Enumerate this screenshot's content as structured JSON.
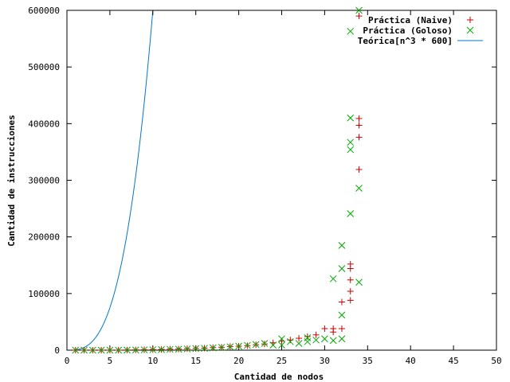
{
  "chart_data": {
    "type": "scatter",
    "xlabel": "Cantidad de nodos",
    "ylabel": "Cantidad de instrucciones",
    "xlim": [
      0,
      50
    ],
    "ylim": [
      0,
      600000
    ],
    "x_ticks": [
      0,
      5,
      10,
      15,
      20,
      25,
      30,
      35,
      40,
      45,
      50
    ],
    "y_ticks": [
      0,
      100000,
      200000,
      300000,
      400000,
      500000,
      600000
    ],
    "x_tick_labels": [
      "0",
      "5",
      "10",
      "15",
      "20",
      "25",
      "30",
      "35",
      "40",
      "45",
      "50"
    ],
    "y_tick_labels": [
      "0",
      "100000",
      "200000",
      "300000",
      "400000",
      "500000",
      "600000"
    ],
    "grid": false,
    "legend_position": "top-right",
    "series": [
      {
        "name": "Práctica (Naive)",
        "marker": "plus",
        "color": "#cc0000",
        "points": [
          [
            1,
            0
          ],
          [
            2,
            0
          ],
          [
            3,
            0
          ],
          [
            4,
            0
          ],
          [
            5,
            0
          ],
          [
            6,
            0
          ],
          [
            7,
            300
          ],
          [
            8,
            500
          ],
          [
            9,
            700
          ],
          [
            10,
            1000
          ],
          [
            11,
            1200
          ],
          [
            12,
            1800
          ],
          [
            13,
            2000
          ],
          [
            14,
            2600
          ],
          [
            15,
            3000
          ],
          [
            16,
            3500
          ],
          [
            17,
            4500
          ],
          [
            18,
            5200
          ],
          [
            19,
            6500
          ],
          [
            20,
            7000
          ],
          [
            21,
            8000
          ],
          [
            22,
            9500
          ],
          [
            23,
            11000
          ],
          [
            24,
            13000
          ],
          [
            25,
            16000
          ],
          [
            26,
            18000
          ],
          [
            27,
            21000
          ],
          [
            28,
            24000
          ],
          [
            29,
            27000
          ],
          [
            30,
            38000
          ],
          [
            31,
            32000
          ],
          [
            31,
            38000
          ],
          [
            32,
            38000
          ],
          [
            32,
            85000
          ],
          [
            33,
            88000
          ],
          [
            33,
            104000
          ],
          [
            33,
            124000
          ],
          [
            33,
            144000
          ],
          [
            33,
            152000
          ],
          [
            34,
            319000
          ],
          [
            34,
            376000
          ],
          [
            34,
            397000
          ],
          [
            34,
            409000
          ],
          [
            34,
            590000
          ]
        ]
      },
      {
        "name": "Práctica (Goloso)",
        "marker": "cross",
        "color": "#00aa00",
        "points": [
          [
            1,
            0
          ],
          [
            2,
            0
          ],
          [
            3,
            0
          ],
          [
            4,
            0
          ],
          [
            5,
            0
          ],
          [
            6,
            0
          ],
          [
            7,
            200
          ],
          [
            8,
            400
          ],
          [
            9,
            600
          ],
          [
            10,
            800
          ],
          [
            11,
            1000
          ],
          [
            12,
            1500
          ],
          [
            13,
            1800
          ],
          [
            14,
            2200
          ],
          [
            15,
            2800
          ],
          [
            16,
            3200
          ],
          [
            17,
            4000
          ],
          [
            18,
            5000
          ],
          [
            19,
            6000
          ],
          [
            20,
            7000
          ],
          [
            21,
            8500
          ],
          [
            22,
            10000
          ],
          [
            23,
            12000
          ],
          [
            24,
            9000
          ],
          [
            25,
            20000
          ],
          [
            25,
            9000
          ],
          [
            26,
            15000
          ],
          [
            27,
            12000
          ],
          [
            28,
            15000
          ],
          [
            28,
            22000
          ],
          [
            29,
            18000
          ],
          [
            30,
            20000
          ],
          [
            31,
            126000
          ],
          [
            31,
            17000
          ],
          [
            32,
            185000
          ],
          [
            32,
            144000
          ],
          [
            32,
            62000
          ],
          [
            32,
            20000
          ],
          [
            33,
            410000
          ],
          [
            33,
            367000
          ],
          [
            33,
            354000
          ],
          [
            33,
            241000
          ],
          [
            34,
            286000
          ],
          [
            34,
            120000
          ],
          [
            33,
            563000
          ],
          [
            34,
            600000
          ]
        ]
      },
      {
        "name": "Teórica[n^3 * 600]",
        "type": "line",
        "color": "#0077cc",
        "formula": "600 * n^3",
        "x_range": [
          1,
          34
        ]
      }
    ]
  }
}
